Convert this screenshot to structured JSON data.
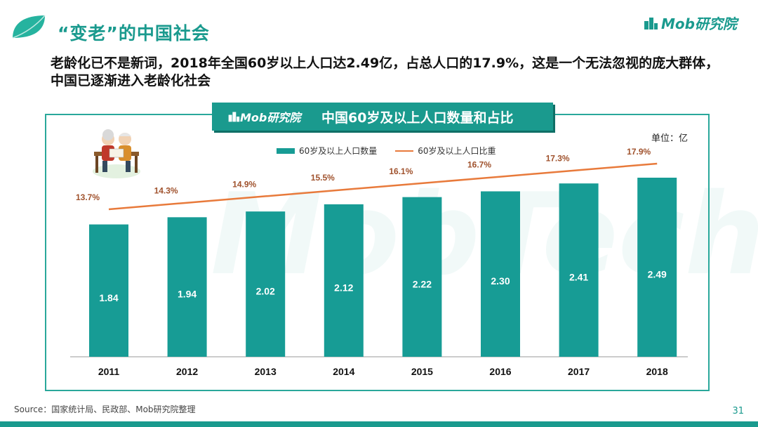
{
  "page": {
    "title": "“变老”的中国社会",
    "subtitle": "老龄化已不是新词，2018年全国60岁以上人口达2.49亿，占总人口的17.9%，这是一个无法忽视的庞大群体，中国已逐渐进入老龄化社会",
    "brand": "Mob研究院",
    "source": "Source：国家统计局、民政部、Mob研究院整理",
    "page_number": "31",
    "watermark": "MobTech"
  },
  "chart_data": {
    "type": "bar",
    "title": "中国60岁及以上人口数量和占比",
    "header_logo": "Mob研究院",
    "unit": "单位：亿",
    "categories": [
      "2011",
      "2012",
      "2013",
      "2014",
      "2015",
      "2016",
      "2017",
      "2018"
    ],
    "series": [
      {
        "name": "60岁及以上人口数量",
        "type": "bar",
        "values": [
          1.84,
          1.94,
          2.02,
          2.12,
          2.22,
          2.3,
          2.41,
          2.49
        ]
      },
      {
        "name": "60岁及以上人口比重",
        "type": "line",
        "values": [
          13.7,
          14.3,
          14.9,
          15.5,
          16.1,
          16.7,
          17.3,
          17.9
        ],
        "labels": [
          "13.7%",
          "14.3%",
          "14.9%",
          "15.5%",
          "16.1%",
          "16.7%",
          "17.3%",
          "17.9%"
        ]
      }
    ],
    "colors": {
      "bar": "#179c95",
      "line": "#e87a3b",
      "line_label": "#a0522d"
    }
  }
}
